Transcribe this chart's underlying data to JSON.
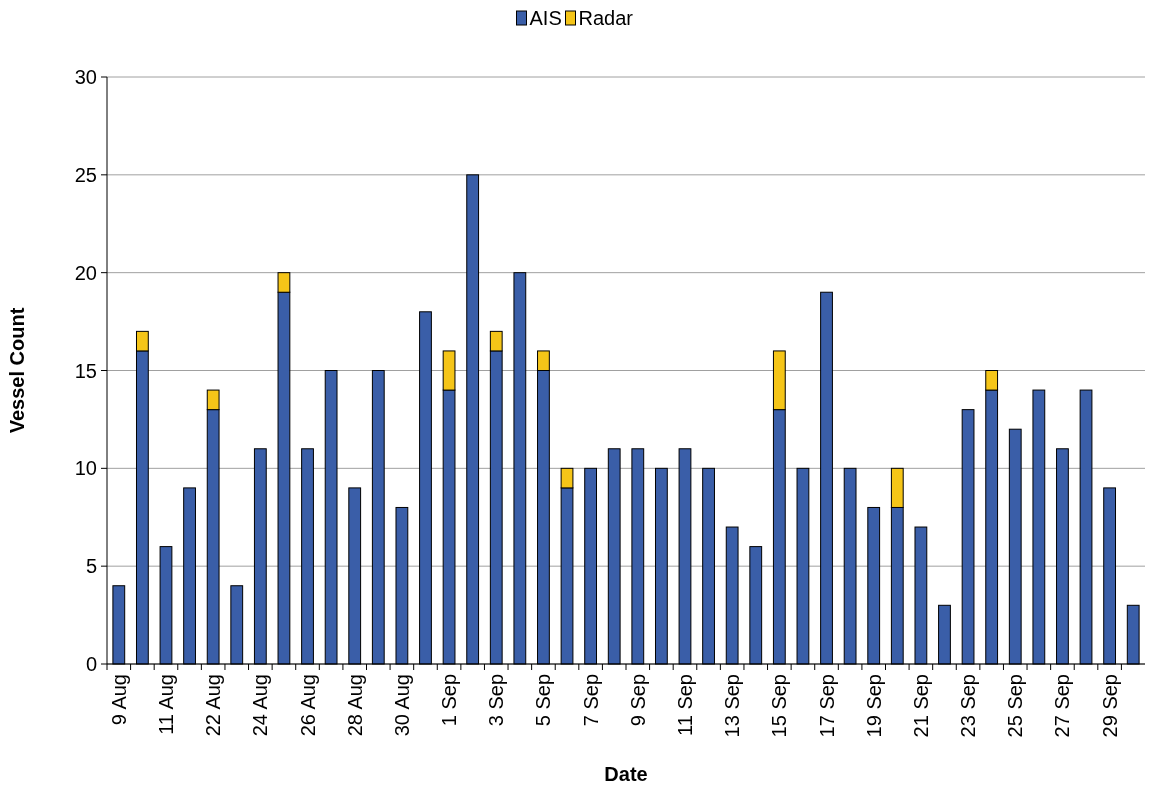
{
  "chart_data": {
    "type": "bar",
    "stacked": true,
    "xlabel": "Date",
    "ylabel": "Vessel Count",
    "categories": [
      "9 Aug",
      null,
      "11 Aug",
      null,
      "22 Aug",
      null,
      "24 Aug",
      null,
      "26 Aug",
      null,
      "28 Aug",
      null,
      "30 Aug",
      null,
      "1 Sep",
      null,
      "3 Sep",
      null,
      "5 Sep",
      null,
      "7 Sep",
      null,
      "9 Sep",
      null,
      "11 Sep",
      null,
      "13 Sep",
      null,
      "15 Sep",
      null,
      "17 Sep",
      null,
      "19 Sep",
      null,
      "21 Sep",
      null,
      "23 Sep",
      null,
      "25 Sep",
      null,
      "27 Sep",
      null,
      "29 Sep",
      null
    ],
    "series": [
      {
        "name": "AIS",
        "color": "#3a5ea8",
        "values": [
          4,
          16,
          6,
          9,
          13,
          4,
          11,
          19,
          11,
          15,
          9,
          15,
          8,
          18,
          14,
          25,
          16,
          20,
          15,
          9,
          10,
          11,
          11,
          10,
          11,
          10,
          7,
          6,
          13,
          10,
          19,
          10,
          8,
          8,
          7,
          3,
          13,
          14,
          12,
          14,
          11,
          14,
          9,
          3
        ]
      },
      {
        "name": "Radar",
        "color": "#f5c518",
        "values": [
          null,
          1,
          null,
          null,
          1,
          null,
          null,
          1,
          null,
          null,
          null,
          null,
          null,
          null,
          2,
          null,
          1,
          null,
          1,
          1,
          null,
          null,
          null,
          null,
          null,
          null,
          null,
          null,
          3,
          null,
          null,
          null,
          null,
          2,
          null,
          null,
          null,
          1,
          null,
          null,
          null,
          null,
          null,
          null
        ]
      }
    ],
    "ylim": [
      0,
      30
    ],
    "yticks": [
      0,
      5,
      10,
      15,
      20,
      25,
      30
    ],
    "grid": "y",
    "legend": "top"
  }
}
